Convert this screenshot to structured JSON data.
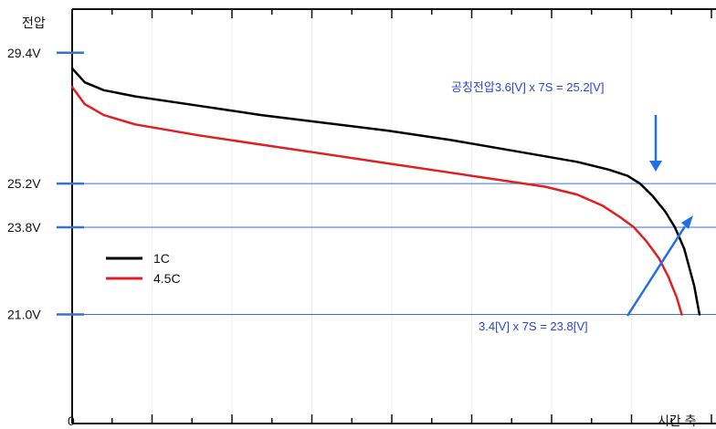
{
  "chart_data": {
    "type": "line",
    "ylabel": "전압",
    "xlabel": "시간 축",
    "x_tick_labels": [
      "0"
    ],
    "y_ticks": [
      {
        "value": 29.4,
        "label": "29.4V"
      },
      {
        "value": 25.2,
        "label": "25.2V"
      },
      {
        "value": 23.8,
        "label": "23.8V"
      },
      {
        "value": 21.0,
        "label": "21.0V"
      }
    ],
    "ylim": [
      17.5,
      30.8
    ],
    "xlim": [
      0,
      100
    ],
    "reference_lines": [
      25.2,
      23.8,
      21.0
    ],
    "series": [
      {
        "name": "1C",
        "color": "#000000",
        "x": [
          0,
          2,
          5,
          10,
          20,
          30,
          40,
          50,
          60,
          70,
          80,
          85,
          88,
          90,
          92,
          94,
          95.5,
          97,
          98.6,
          99.4
        ],
        "y": [
          28.9,
          28.45,
          28.2,
          28.0,
          27.7,
          27.4,
          27.15,
          26.9,
          26.6,
          26.25,
          25.9,
          25.65,
          25.45,
          25.2,
          24.8,
          24.3,
          23.8,
          23.1,
          21.9,
          21.0
        ]
      },
      {
        "name": "4.5C",
        "color": "#e02020",
        "x": [
          0,
          2,
          5,
          10,
          20,
          30,
          40,
          50,
          60,
          70,
          75,
          80,
          84,
          87,
          89,
          91,
          93,
          94.5,
          95.8,
          96.6
        ],
        "y": [
          28.3,
          27.75,
          27.4,
          27.1,
          26.75,
          26.45,
          26.15,
          25.85,
          25.55,
          25.25,
          25.1,
          24.85,
          24.5,
          24.1,
          23.8,
          23.35,
          22.8,
          22.2,
          21.55,
          21.0
        ]
      }
    ],
    "legend_position": "bottom-left",
    "annotations": [
      {
        "text": "공칭전압3.6[V]  x 7S  =  25.2[V]",
        "target": {
          "x": 90,
          "y": 25.2
        }
      },
      {
        "text": "3.4[V]  x 7S  =  23.8[V]",
        "target": {
          "x": 95.5,
          "y": 23.8
        }
      }
    ],
    "colors": {
      "reference_line": "#3b6fd6",
      "annotation": "#2a44d8",
      "arrow": "#1f6fe8",
      "axis_tick": "#3b6fd6"
    }
  }
}
